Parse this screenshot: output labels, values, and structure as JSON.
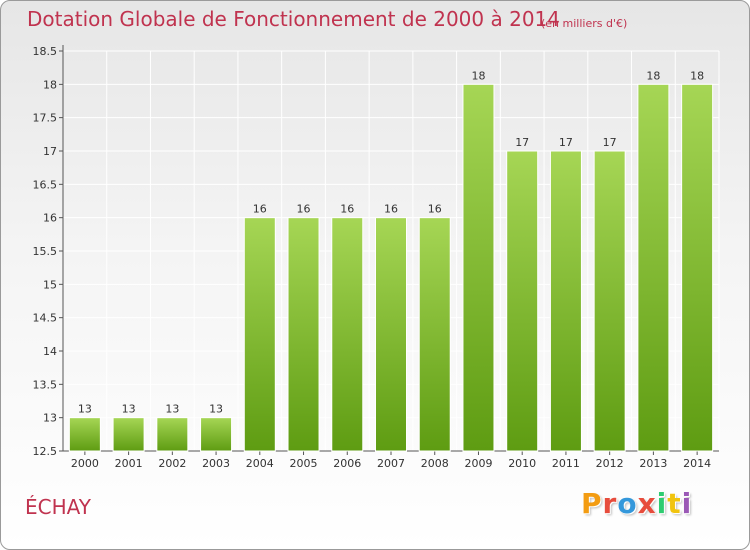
{
  "header": {
    "title": "Dotation Globale de Fonctionnement de 2000 à 2014",
    "unit": "(en milliers d'€)"
  },
  "footer": {
    "commune": "ÉCHAY",
    "logo_text": "Proxiti",
    "logo_colors": [
      "#f39c12",
      "#e74c3c",
      "#3498db",
      "#e74c3c",
      "#2ecc71",
      "#f1c40f",
      "#9b59b6"
    ]
  },
  "colors": {
    "bar_light": "#a6d655",
    "bar_dark": "#5e9c12",
    "title": "#c0334f",
    "axis_text": "#333333",
    "grid": "#ffffff"
  },
  "chart_data": {
    "type": "bar",
    "categories": [
      "2000",
      "2001",
      "2002",
      "2003",
      "2004",
      "2005",
      "2006",
      "2007",
      "2008",
      "2009",
      "2010",
      "2011",
      "2012",
      "2013",
      "2014"
    ],
    "values": [
      13,
      13,
      13,
      13,
      16,
      16,
      16,
      16,
      16,
      18,
      17,
      17,
      17,
      18,
      18
    ],
    "data_labels": [
      "13",
      "13",
      "13",
      "13",
      "16",
      "16",
      "16",
      "16",
      "16",
      "18",
      "17",
      "17",
      "17",
      "18",
      "18"
    ],
    "y_ticks": [
      "12.5",
      "13",
      "13.5",
      "14",
      "14.5",
      "15",
      "15.5",
      "16",
      "16.5",
      "17",
      "17.5",
      "18",
      "18.5"
    ],
    "ylim": [
      12.5,
      18.5
    ],
    "grid": true,
    "legend": "none"
  }
}
